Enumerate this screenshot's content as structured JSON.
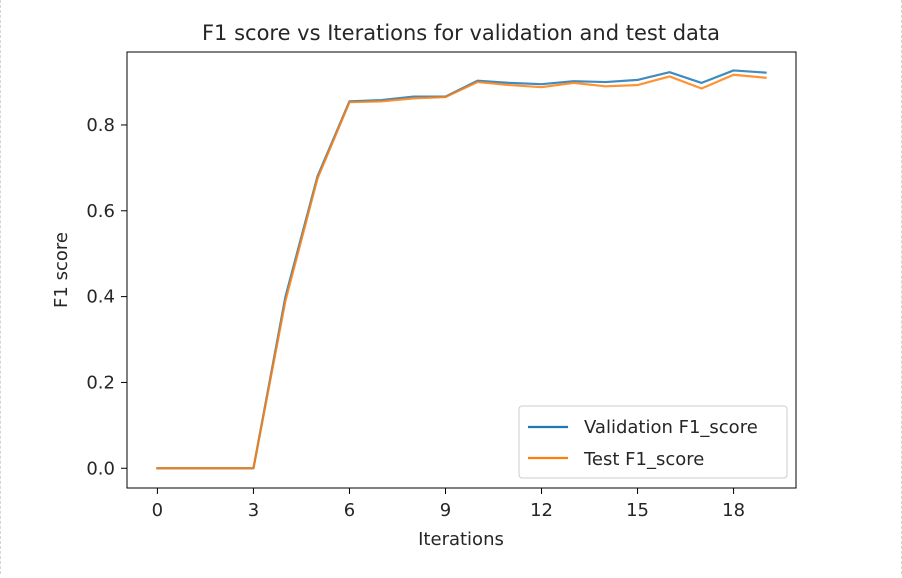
{
  "chart_data": {
    "type": "line",
    "title": "F1 score vs Iterations for validation and test data",
    "xlabel": "Iterations",
    "ylabel": "F1 score",
    "xlim": [
      -0.95,
      19.95
    ],
    "ylim": [
      -0.046,
      0.97
    ],
    "xticks": [
      0,
      3,
      6,
      9,
      12,
      15,
      18
    ],
    "xtick_labels": [
      "0",
      "3",
      "6",
      "9",
      "12",
      "15",
      "18"
    ],
    "yticks": [
      0.0,
      0.2,
      0.4,
      0.6,
      0.8
    ],
    "ytick_labels": [
      "0.0",
      "0.2",
      "0.4",
      "0.6",
      "0.8"
    ],
    "grid": false,
    "legend_position": "bottom-right",
    "x": [
      0,
      1,
      2,
      3,
      4,
      5,
      6,
      7,
      8,
      9,
      10,
      11,
      12,
      13,
      14,
      15,
      16,
      17,
      18,
      19
    ],
    "series": [
      {
        "name": "Validation F1_score",
        "color": "#1f77b4",
        "values": [
          0.0,
          0.0,
          0.0,
          0.0,
          0.4,
          0.68,
          0.855,
          0.858,
          0.866,
          0.866,
          0.903,
          0.898,
          0.895,
          0.902,
          0.9,
          0.905,
          0.923,
          0.898,
          0.927,
          0.922
        ]
      },
      {
        "name": "Test F1_score",
        "color": "#ff7f0e",
        "values": [
          0.0,
          0.0,
          0.0,
          0.0,
          0.39,
          0.675,
          0.853,
          0.855,
          0.862,
          0.865,
          0.9,
          0.893,
          0.888,
          0.898,
          0.89,
          0.893,
          0.913,
          0.885,
          0.917,
          0.91
        ]
      }
    ]
  }
}
